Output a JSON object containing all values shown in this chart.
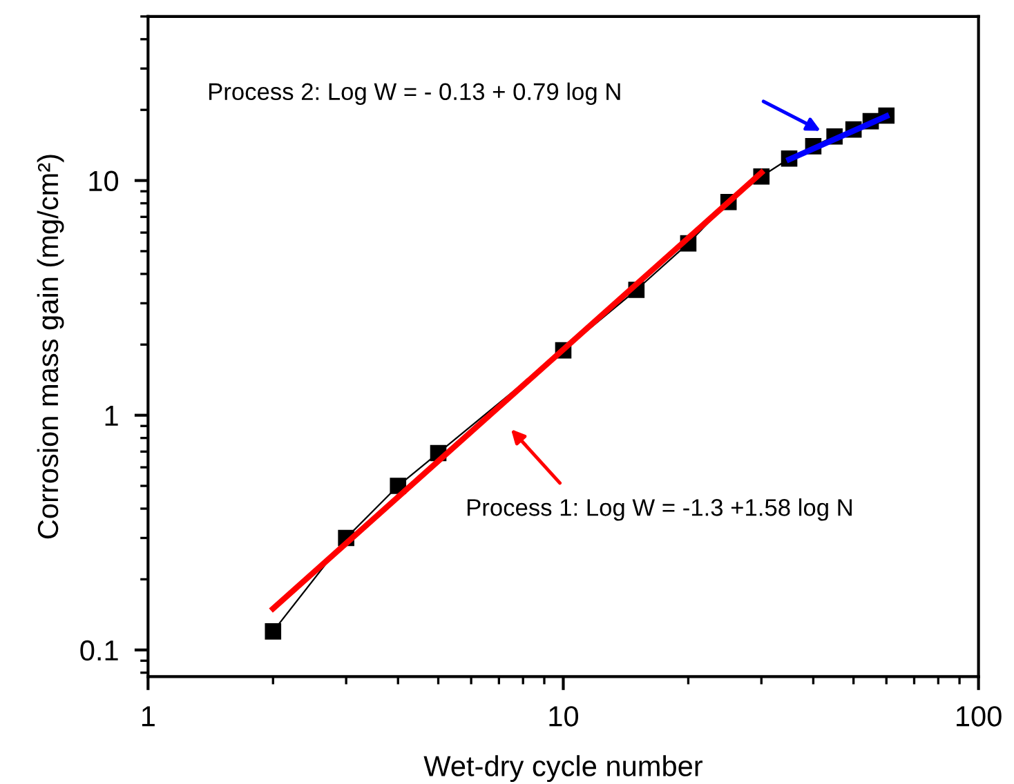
{
  "chart_data": {
    "type": "line",
    "xlabel": "Wet-dry cycle number",
    "ylabel": "Corrosion mass gain (mg/cm²)",
    "log": "xy",
    "xlim": [
      1,
      100
    ],
    "ylim": [
      0.077,
      50
    ],
    "xticks": [
      1,
      10,
      100
    ],
    "yticks": [
      0.1,
      1,
      10
    ],
    "grid": false,
    "legend": false,
    "series": [
      {
        "color": "#000000",
        "marker": "square",
        "x": [
          2,
          3,
          4,
          5,
          10,
          15,
          20,
          25,
          30,
          35,
          40,
          45,
          50,
          55,
          60
        ],
        "values": [
          0.12,
          0.3,
          0.5,
          0.69,
          1.89,
          3.42,
          5.4,
          8.1,
          10.4,
          12.4,
          14.0,
          15.4,
          16.5,
          17.9,
          18.9
        ]
      },
      {
        "color": "#ff0000",
        "marker": "none",
        "x": [
          2,
          30
        ],
        "values": [
          0.15,
          10.8
        ]
      },
      {
        "color": "#0000ff",
        "marker": "none",
        "x": [
          35,
          60
        ],
        "values": [
          12.3,
          18.8
        ]
      }
    ],
    "annotations": [
      "Process 2: Log W = - 0.13 + 0.79 log N",
      "Process 1: Log W = -1.3 +1.58 log N"
    ]
  }
}
